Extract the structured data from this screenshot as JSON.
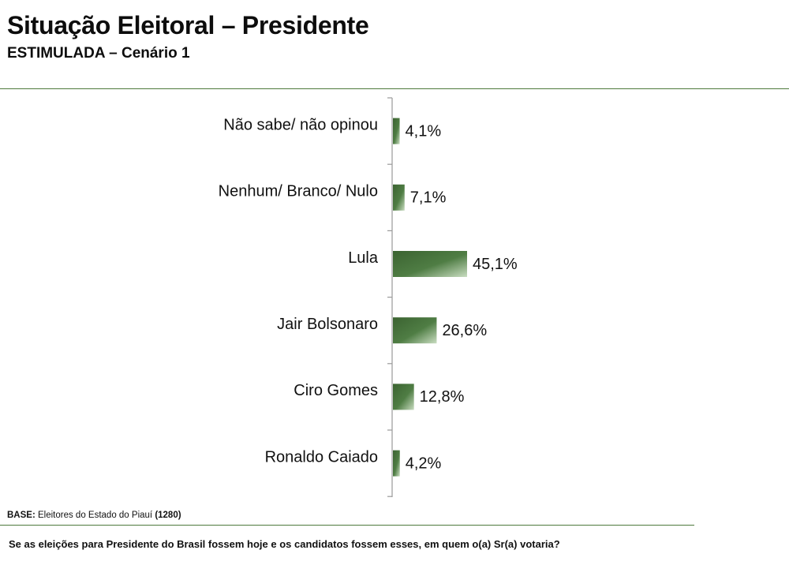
{
  "header": {
    "title": "Situação Eleitoral – Presidente",
    "subtitle": "ESTIMULADA – Cenário 1"
  },
  "chart_data": {
    "type": "bar",
    "orientation": "horizontal",
    "title": "Situação Eleitoral – Presidente",
    "subtitle": "ESTIMULADA – Cenário 1",
    "categories": [
      "Não sabe/ não opinou",
      "Nenhum/ Branco/ Nulo",
      "Lula",
      "Jair Bolsonaro",
      "Ciro Gomes",
      "Ronaldo Caiado"
    ],
    "values": [
      4.1,
      7.1,
      45.1,
      26.6,
      12.8,
      4.2
    ],
    "value_labels": [
      "4,1%",
      "7,1%",
      "45,1%",
      "26,6%",
      "12,8%",
      "4,2%"
    ],
    "unit": "%",
    "xlim": [
      0,
      100
    ],
    "bar_color": "#3f6a35",
    "grid": false,
    "legend": "none"
  },
  "footer": {
    "base_label": "BASE:",
    "base_text": "Eleitores do Estado do Piauí",
    "base_count": "(1280)",
    "question": "Se as eleições para Presidente do Brasil fossem hoje e os candidatos fossem esses, em quem o(a) Sr(a) votaria?"
  },
  "colors": {
    "accent": "#4e7a3c",
    "bar_dark": "#3f6a35",
    "bar_light": "#c8dcc0"
  }
}
